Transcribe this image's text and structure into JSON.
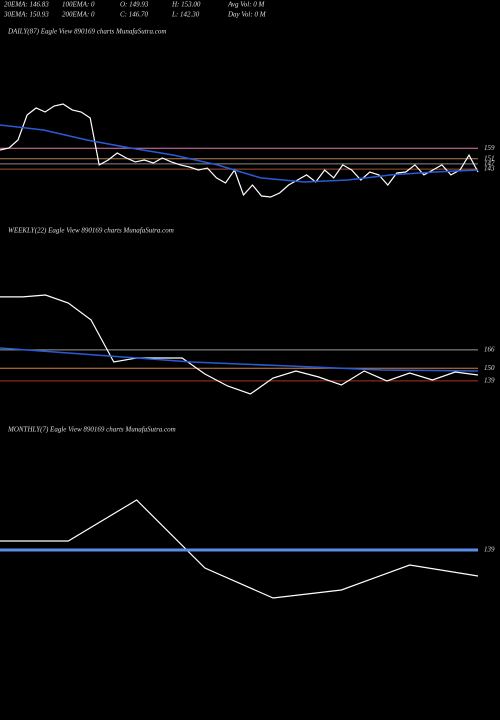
{
  "header": {
    "rows": [
      [
        "20EMA: 146.83",
        "100EMA: 0",
        "O: 149.93",
        "H: 153.00",
        "Avg Vol: 0  M"
      ],
      [
        "30EMA: 150.93",
        "200EMA: 0",
        "C: 146.70",
        "L: 142.30",
        "Day Vol: 0  M"
      ]
    ]
  },
  "chart_data": [
    {
      "type": "line",
      "title": "DAILY(87) Eagle  View  890169 charts MunafaSutra.com",
      "ylim": [
        100,
        242.3
      ],
      "yticks": [
        159,
        151,
        147,
        143
      ],
      "tick_colors": [
        "#e07ab0",
        "#b08050",
        "#8a8a8a",
        "#a0522d"
      ],
      "series": [
        {
          "color": "#ffffff",
          "width": 1.2,
          "values": [
            157.7,
            159.2,
            165.4,
            184.6,
            190,
            186.9,
            191.5,
            193.1,
            188.5,
            186.9,
            182.3,
            146.2,
            150,
            155.4,
            151.5,
            148.5,
            150,
            147.7,
            151.5,
            148.5,
            146.2,
            144.6,
            142.3,
            143.8,
            136.2,
            132.3,
            142.3,
            123.1,
            130.8,
            122.3,
            121.5,
            124.6,
            130.8,
            134.6,
            138.5,
            133.1,
            142.3,
            136.2,
            146.2,
            142.3,
            134.6,
            140.8,
            138.5,
            130.8,
            140,
            140.8,
            146.2,
            138.5,
            142.3,
            146.2,
            138.5,
            142.3,
            153.8,
            140.8
          ]
        },
        {
          "color": "#2a5bd7",
          "width": 1.5,
          "values": [
            176.9,
            173.1,
            165.4,
            159.2,
            153.8,
            146.2,
            136.2,
            133.1,
            134.6,
            138.5,
            140.8,
            142.3
          ]
        }
      ]
    },
    {
      "type": "line",
      "title": "WEEKLY(22) Eagle  View  890169 charts MunafaSutra.com",
      "ylim": [
        105,
        261.5
      ],
      "yticks": [
        166,
        150,
        139
      ],
      "tick_colors": [
        "#9a9a9a",
        "#d08040",
        "#b03020"
      ],
      "series": [
        {
          "color": "#ffffff",
          "width": 1.2,
          "values": [
            212,
            212,
            213.7,
            206.7,
            192,
            155.4,
            158.9,
            158.9,
            158.9,
            145,
            134.6,
            127.6,
            141.5,
            147.6,
            142.4,
            135.4,
            147.6,
            138.9,
            145.9,
            139.8,
            146.7,
            144.1
          ]
        },
        {
          "color": "#2a5bd7",
          "width": 1.5,
          "values": [
            167.6,
            161.5,
            155.4,
            152,
            148.5,
            147.6
          ]
        }
      ]
    },
    {
      "type": "line",
      "title": "MONTHLY(7) Eagle  View  890169 charts MunafaSutra.com",
      "ylim": [
        39,
        219
      ],
      "yticks": [
        139
      ],
      "tick_colors": [
        "#5a8ee8"
      ],
      "series": [
        {
          "color": "#ffffff",
          "width": 1.2,
          "values": [
            145,
            145,
            172.3,
            127,
            107,
            112.3,
            129,
            121.7
          ]
        },
        {
          "color": "#5a8ee8",
          "width": 3,
          "values": [
            139,
            139
          ]
        }
      ]
    }
  ]
}
